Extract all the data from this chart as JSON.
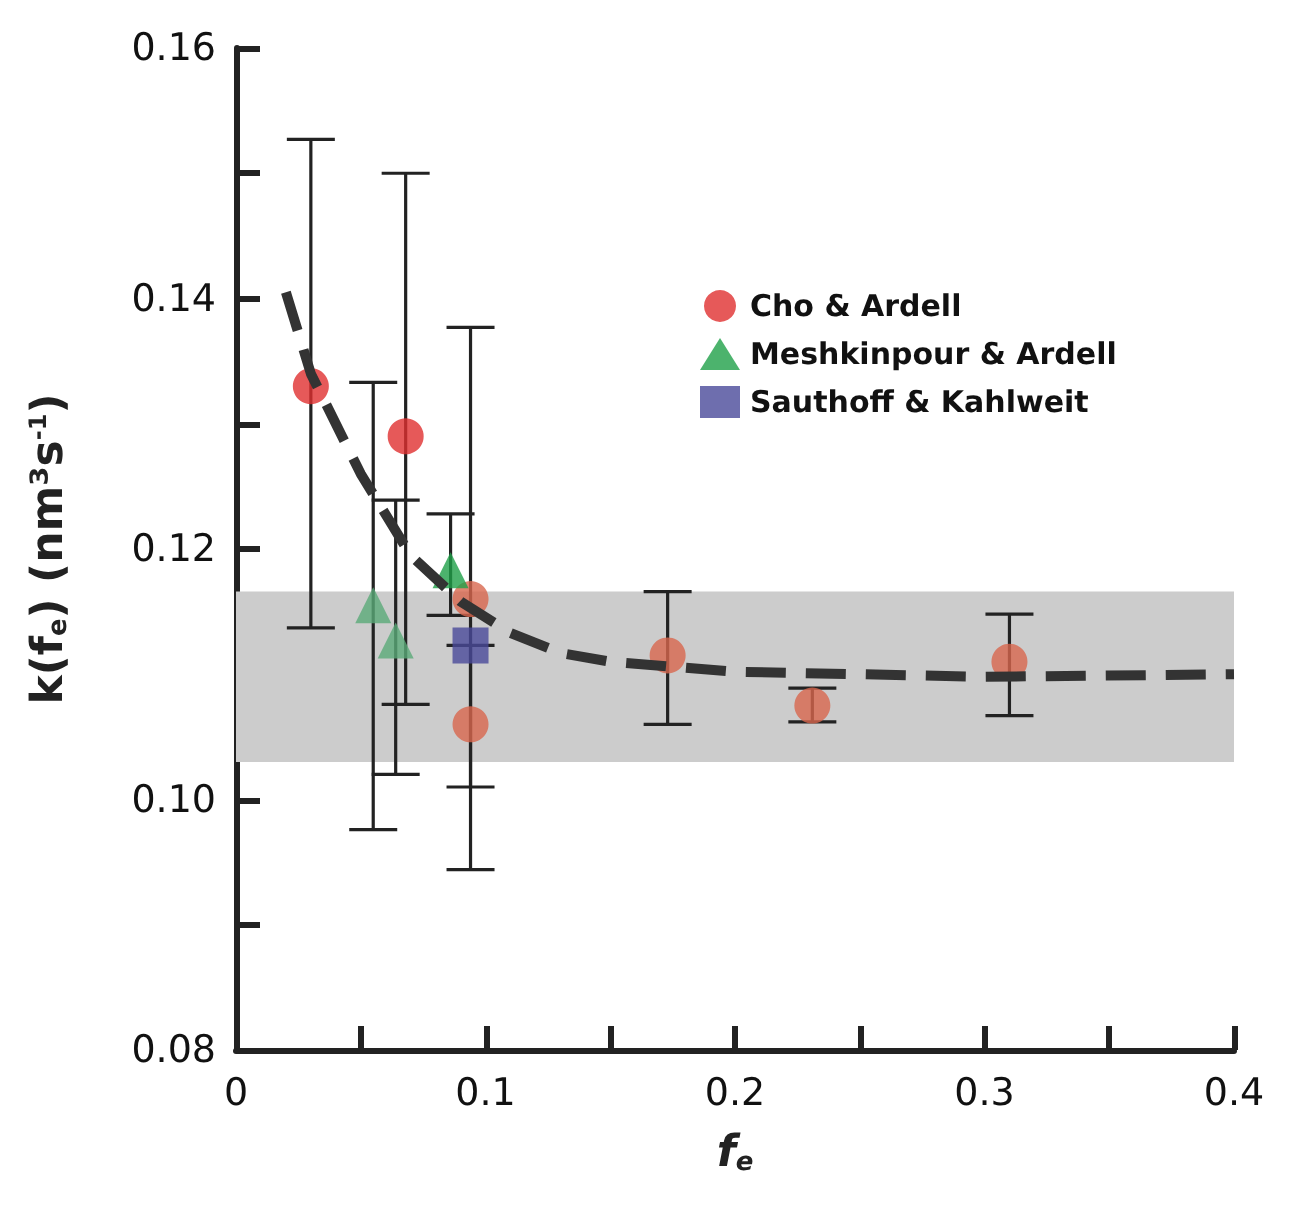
{
  "chart_data": {
    "type": "scatter",
    "xlabel": "f$_{e}$",
    "ylabel": "k(f$_{e}$) (nm³s$^{-1}$)",
    "xlim": [
      0,
      0.4
    ],
    "xticks": [
      0,
      0.1,
      0.2,
      0.3,
      0.4
    ],
    "ylim": [
      0.08,
      0.16
    ],
    "yticks": [
      {
        "value": 0.08,
        "label": "0.08"
      },
      {
        "value": 0.1,
        "label": "0.10"
      },
      {
        "value": 0.12,
        "label": "0.12"
      },
      {
        "value": 0.14,
        "label": "0.14"
      },
      {
        "value": 0.16,
        "label": "0.16"
      }
    ],
    "grid": false,
    "legend": "top right",
    "series": [
      {
        "name": "Cho & Ardell",
        "color": "#e03030",
        "marker": "circle",
        "x": [
          0.03,
          0.068,
          0.094,
          0.094,
          0.173,
          0.231,
          0.31
        ],
        "values": [
          0.133,
          0.129,
          0.116,
          0.106,
          0.1115,
          0.1075,
          0.111
        ],
        "colors": [
          "#e03030",
          "#e03030",
          "#d8664e",
          "#d8664e",
          "#d8664e",
          "#d8664e",
          "#d8664e"
        ],
        "errors": [
          [
            0.1137,
            0.1527
          ],
          [
            0.1076,
            0.15
          ],
          [
            0.0944,
            0.1377
          ],
          null,
          [
            0.106,
            0.1166
          ],
          [
            0.1062,
            0.1089
          ],
          [
            0.1067,
            0.1148
          ]
        ]
      },
      {
        "name": "Meshkinpour & Ardell",
        "color": "#1fa048",
        "marker": "triangle",
        "x": [
          0.055,
          0.064,
          0.086
        ],
        "values": [
          0.1155,
          0.1127,
          0.1183
        ],
        "colors": [
          "#5aaa78",
          "#5aaa78",
          "#1fa048"
        ],
        "errors": [
          [
            0.0976,
            0.1333
          ],
          [
            0.102,
            0.1239
          ],
          [
            0.1147,
            0.1228
          ]
        ]
      },
      {
        "name": "Sauthoff & Kahlweit",
        "color": "#4a4a9a",
        "marker": "square",
        "x": [
          0.094
        ],
        "values": [
          0.1123
        ],
        "errors": [
          [
            0.101,
            0.1123
          ]
        ]
      },
      {
        "type": "line",
        "color": "#333333",
        "marker": "none",
        "line_style": "dashed",
        "x": [
          0.02,
          0.03,
          0.05,
          0.07,
          0.09,
          0.11,
          0.13,
          0.15,
          0.2,
          0.3,
          0.4
        ],
        "values": [
          0.1405,
          0.134,
          0.126,
          0.1195,
          0.1158,
          0.1133,
          0.1117,
          0.111,
          0.1102,
          0.1098,
          0.11
        ]
      }
    ],
    "bands": [
      {
        "axis": "y",
        "from": 0.103,
        "to": 0.1166,
        "color": "#cccccc"
      }
    ]
  }
}
